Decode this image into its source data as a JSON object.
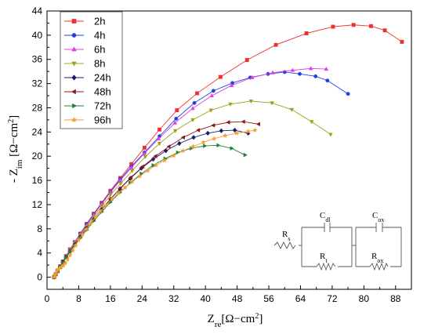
{
  "chart_data": {
    "type": "scatter",
    "xlabel": {
      "main": "Z",
      "sub": "re",
      "unit": "[Ω−cm",
      "sup": "2",
      "close": "]"
    },
    "ylabel": {
      "main": "- Z",
      "sub": "im",
      "unit": " [Ω−cm",
      "sup": "2",
      "close": "]"
    },
    "xlim": [
      0,
      92
    ],
    "ylim": [
      -2,
      44
    ],
    "xticks": [
      0,
      8,
      16,
      24,
      32,
      40,
      48,
      56,
      64,
      72,
      80,
      88
    ],
    "yticks": [
      0,
      4,
      8,
      12,
      16,
      20,
      24,
      28,
      32,
      36,
      40,
      44
    ],
    "legend_position": "top-left",
    "grid": false,
    "series": [
      {
        "name": "2h",
        "color": "#f0302f",
        "marker": "square",
        "x": [
          1.8,
          2.2,
          2.7,
          3.3,
          4.0,
          4.8,
          5.8,
          7.0,
          8.4,
          10.0,
          11.8,
          13.8,
          16.0,
          18.5,
          21.3,
          24.6,
          28.4,
          32.8,
          37.9,
          43.8,
          50.5,
          57.8,
          65.5,
          72.2,
          77.4,
          81.8,
          85.3,
          89.6
        ],
        "y": [
          0,
          0.5,
          1.1,
          1.8,
          2.6,
          3.5,
          4.6,
          5.8,
          7.2,
          8.8,
          10.5,
          12.3,
          14.3,
          16.4,
          18.7,
          21.4,
          24.4,
          27.6,
          30.4,
          33.1,
          35.9,
          38.4,
          40.3,
          41.4,
          41.7,
          41.5,
          40.8,
          38.9
        ]
      },
      {
        "name": "4h",
        "color": "#2040e0",
        "marker": "circle",
        "x": [
          1.8,
          2.2,
          2.7,
          3.3,
          4.0,
          4.8,
          5.8,
          7.0,
          8.4,
          10.0,
          11.8,
          13.8,
          16.0,
          18.5,
          21.3,
          24.6,
          28.4,
          32.6,
          37.2,
          42.0,
          46.8,
          51.3,
          55.8,
          60.0,
          63.8,
          67.8,
          70.8,
          76.0
        ],
        "y": [
          0,
          0.5,
          1.1,
          1.8,
          2.6,
          3.5,
          4.6,
          5.8,
          7.2,
          8.8,
          10.4,
          12.2,
          14.1,
          16.2,
          18.3,
          20.6,
          23.3,
          26.2,
          28.8,
          30.8,
          32.1,
          33.0,
          33.6,
          33.9,
          33.6,
          33.2,
          32.5,
          30.3
        ]
      },
      {
        "name": "6h",
        "color": "#e040e0",
        "marker": "triangle-up",
        "x": [
          1.8,
          2.2,
          2.7,
          3.3,
          4.0,
          4.8,
          5.8,
          7.0,
          8.4,
          10.0,
          11.8,
          13.8,
          16.0,
          18.5,
          21.3,
          24.5,
          28.2,
          32.3,
          36.8,
          41.6,
          46.6,
          51.8,
          57.0,
          62.0,
          66.6,
          70.5
        ],
        "y": [
          0,
          0.5,
          1.1,
          1.8,
          2.6,
          3.5,
          4.6,
          5.8,
          7.1,
          8.6,
          10.3,
          12.1,
          14.0,
          16.0,
          18.1,
          20.4,
          22.9,
          25.5,
          27.9,
          30.0,
          31.7,
          33.0,
          33.8,
          34.2,
          34.5,
          34.4
        ]
      },
      {
        "name": "8h",
        "color": "#a0a020",
        "marker": "triangle-down",
        "x": [
          1.8,
          2.2,
          2.7,
          3.3,
          4.0,
          4.8,
          5.8,
          7.0,
          8.4,
          10.0,
          11.8,
          13.8,
          16.0,
          18.6,
          21.5,
          24.8,
          28.4,
          32.4,
          36.8,
          41.4,
          46.3,
          51.5,
          56.8,
          61.8,
          66.8,
          71.6
        ],
        "y": [
          0,
          0.5,
          1.1,
          1.8,
          2.5,
          3.4,
          4.4,
          5.6,
          6.9,
          8.4,
          10.0,
          11.7,
          13.6,
          15.5,
          17.6,
          19.9,
          22.1,
          24.2,
          26.0,
          27.6,
          28.6,
          29.1,
          28.8,
          27.7,
          25.7,
          23.6
        ]
      },
      {
        "name": "24h",
        "color": "#1a1a6e",
        "marker": "diamond",
        "x": [
          1.8,
          2.2,
          2.7,
          3.3,
          4.0,
          4.8,
          5.8,
          7.0,
          8.4,
          10.0,
          11.8,
          13.8,
          16.0,
          18.4,
          21.0,
          23.8,
          26.8,
          30.0,
          33.4,
          37.0,
          40.6,
          44.0,
          47.4,
          50.8
        ],
        "y": [
          0,
          0.5,
          1.0,
          1.7,
          2.5,
          3.3,
          4.3,
          5.4,
          6.7,
          8.1,
          9.6,
          11.2,
          12.9,
          14.6,
          16.3,
          18.0,
          19.5,
          20.9,
          22.1,
          23.1,
          23.8,
          24.2,
          24.3,
          23.8
        ]
      },
      {
        "name": "48h",
        "color": "#8b1a1a",
        "marker": "triangle-left",
        "x": [
          1.8,
          2.2,
          2.7,
          3.3,
          4.0,
          4.8,
          5.8,
          7.0,
          8.4,
          10.0,
          11.8,
          13.8,
          16.0,
          18.5,
          21.2,
          24.2,
          27.4,
          30.8,
          34.4,
          38.2,
          42.0,
          45.8,
          49.6,
          53.4
        ],
        "y": [
          0,
          0.5,
          1.0,
          1.7,
          2.5,
          3.3,
          4.3,
          5.4,
          6.7,
          8.1,
          9.6,
          11.2,
          12.9,
          14.7,
          16.5,
          18.3,
          20.0,
          21.6,
          23.1,
          24.3,
          25.1,
          25.6,
          25.7,
          25.3
        ]
      },
      {
        "name": "72h",
        "color": "#208040",
        "marker": "triangle-right",
        "x": [
          1.8,
          2.2,
          2.7,
          3.3,
          4.0,
          4.8,
          5.8,
          7.0,
          8.4,
          10.0,
          11.8,
          13.8,
          16.0,
          18.4,
          21.0,
          23.8,
          26.8,
          29.8,
          33.0,
          36.4,
          39.8,
          43.2,
          46.6,
          50.0
        ],
        "y": [
          0,
          0.5,
          1.0,
          1.7,
          2.4,
          3.2,
          4.2,
          5.3,
          6.5,
          7.8,
          9.3,
          10.8,
          12.4,
          14.0,
          15.6,
          17.1,
          18.5,
          19.6,
          20.6,
          21.3,
          21.7,
          21.8,
          21.3,
          20.2
        ]
      },
      {
        "name": "96h",
        "color": "#f0a030",
        "marker": "star",
        "x": [
          1.8,
          2.0,
          2.2,
          2.5,
          2.8,
          3.2,
          3.6,
          4.1,
          4.6,
          5.2,
          5.8,
          6.5,
          7.2,
          8.0,
          8.9,
          9.9,
          11.0,
          12.2,
          13.5,
          14.9,
          16.4,
          18.0,
          19.7,
          21.5,
          23.4,
          25.4,
          27.5,
          29.7,
          32.0,
          34.4,
          36.9,
          39.5,
          42.2,
          45.0,
          47.9,
          50.8,
          52.5
        ],
        "y": [
          0,
          0.3,
          0.6,
          1.0,
          1.3,
          1.5,
          1.7,
          1.9,
          2.3,
          2.9,
          3.6,
          4.4,
          5.2,
          6.1,
          7.0,
          7.9,
          8.9,
          9.9,
          10.9,
          11.9,
          12.9,
          13.9,
          14.8,
          15.8,
          16.7,
          17.6,
          18.5,
          19.3,
          20.1,
          20.9,
          21.6,
          22.3,
          22.9,
          23.4,
          23.8,
          24.1,
          24.3
        ]
      }
    ],
    "inset_circuit": {
      "labels": {
        "rs": "R",
        "rs_sub": "s",
        "cdl": "C",
        "cdl_sub": "dl",
        "rt": "R",
        "rt_sub": "t",
        "cox": "C",
        "cox_sub": "ox",
        "rox": "R",
        "rox_sub": "ox"
      }
    }
  }
}
